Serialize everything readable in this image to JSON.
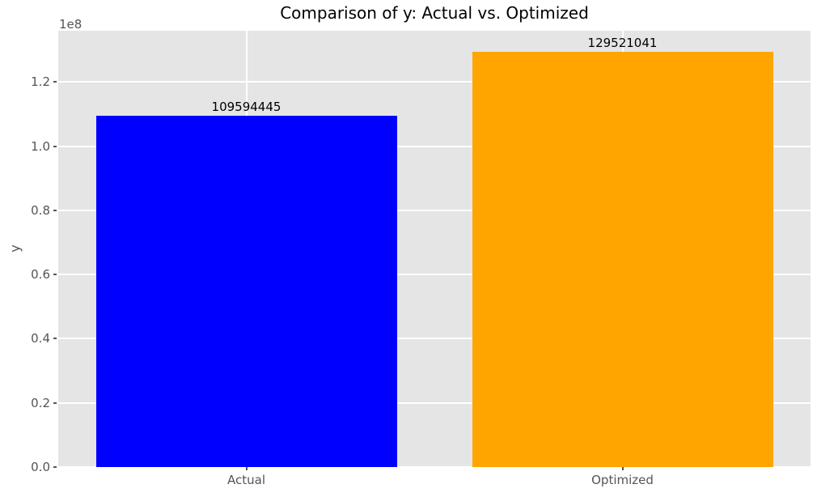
{
  "chart_data": {
    "type": "bar",
    "title": "Comparison of y: Actual vs. Optimized",
    "ylabel": "y",
    "xlabel": "",
    "offset_text": "1e8",
    "categories": [
      "Actual",
      "Optimized"
    ],
    "values": [
      109594445,
      129521041
    ],
    "bar_labels": [
      "109594445",
      "129521041"
    ],
    "bar_colors": [
      "#0000ff",
      "#ffa500"
    ],
    "ylim": [
      0,
      136000000
    ],
    "yticks": [
      {
        "value": 0,
        "label": "0.0"
      },
      {
        "value": 20000000,
        "label": "0.2"
      },
      {
        "value": 40000000,
        "label": "0.4"
      },
      {
        "value": 60000000,
        "label": "0.6"
      },
      {
        "value": 80000000,
        "label": "0.8"
      },
      {
        "value": 100000000,
        "label": "1.0"
      },
      {
        "value": 120000000,
        "label": "1.2"
      }
    ],
    "grid": {
      "horizontal": true,
      "vertical": true,
      "color": "#ffffff"
    },
    "legend": {
      "visible": false
    },
    "colors": {
      "figure_bg": "#ffffff",
      "axes_bg": "#e5e5e5",
      "grid": "#ffffff",
      "tick_text": "#555555",
      "title_text": "#000000",
      "bar_label_text": "#000000"
    }
  }
}
